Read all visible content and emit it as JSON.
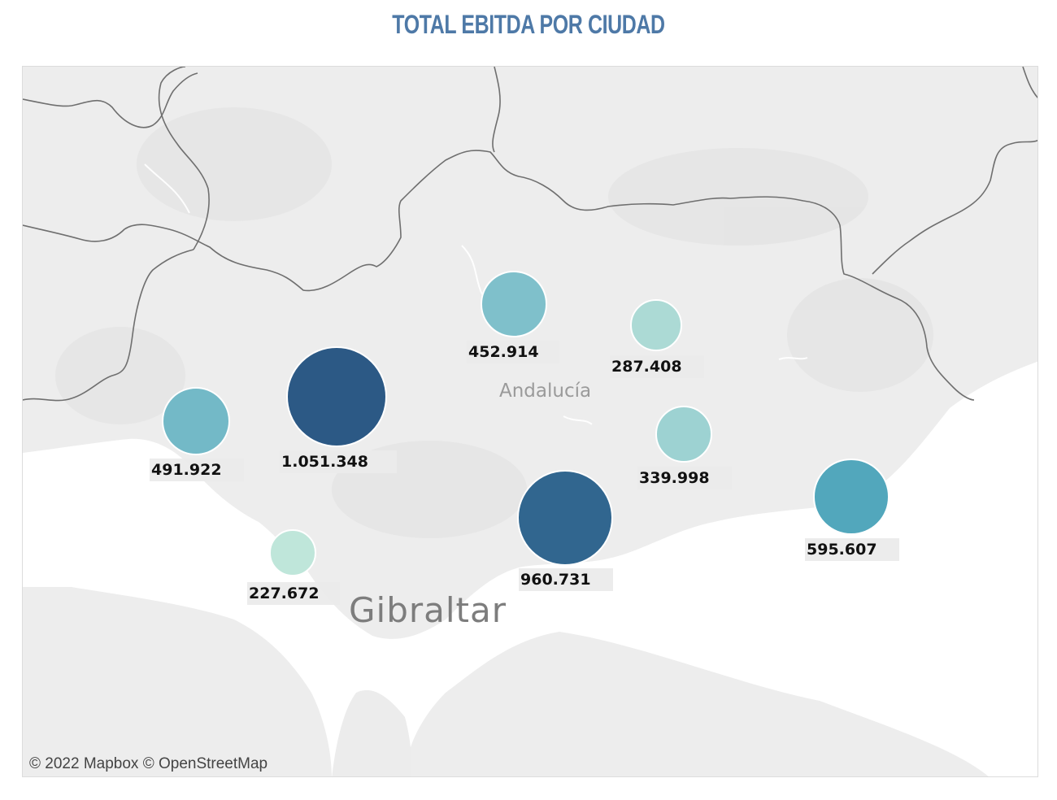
{
  "title": "TOTAL EBITDA POR CIUDAD",
  "map": {
    "region_label": "Andalucía",
    "gibraltar_label": "Gibraltar",
    "attribution": "© 2022 Mapbox  © OpenStreetMap",
    "colors": {
      "land": "#ededed",
      "sea": "#ffffff",
      "border": "#6f6f6f",
      "low": "#bfe6da",
      "mid": "#6fb4c4",
      "high": "#2c5985"
    }
  },
  "chart_data": {
    "type": "scatter",
    "title": "TOTAL EBITDA POR CIUDAD",
    "points": [
      {
        "value": 452.914,
        "label": "452.914",
        "color": "#7fc0cb"
      },
      {
        "value": 287.408,
        "label": "287.408",
        "color": "#acdad5"
      },
      {
        "value": 491.922,
        "label": "491.922",
        "color": "#73b9c7"
      },
      {
        "value": 1051.348,
        "label": "1.051.348",
        "color": "#2c5985"
      },
      {
        "value": 339.998,
        "label": "339.998",
        "color": "#9dd2d2"
      },
      {
        "value": 960.731,
        "label": "960.731",
        "color": "#31668f"
      },
      {
        "value": 595.607,
        "label": "595.607",
        "color": "#52a7bc"
      },
      {
        "value": 227.672,
        "label": "227.672",
        "color": "#bfe6da"
      }
    ]
  }
}
